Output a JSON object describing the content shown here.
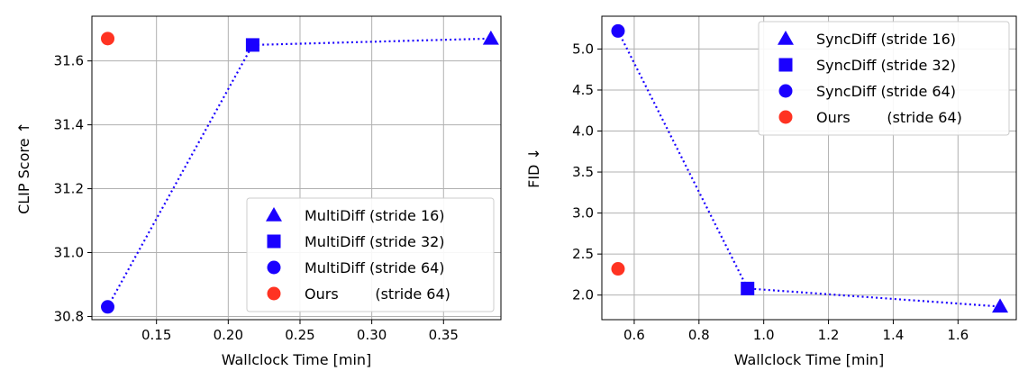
{
  "chart_data": [
    {
      "type": "scatter",
      "xlabel": "Wallclock Time [min]",
      "ylabel": "CLIP Score ↑",
      "xlim": [
        0.105,
        0.39
      ],
      "ylim": [
        30.79,
        31.74
      ],
      "xticks": [
        0.15,
        0.2,
        0.25,
        0.3,
        0.35
      ],
      "xtick_labels": [
        "0.15",
        "0.20",
        "0.25",
        "0.30",
        "0.35"
      ],
      "yticks": [
        30.8,
        31.0,
        31.2,
        31.4,
        31.6
      ],
      "ytick_labels": [
        "30.8",
        "31.0",
        "31.2",
        "31.4",
        "31.6"
      ],
      "grid": true,
      "legend_position": "lower-right",
      "connector_line": {
        "style": "dotted",
        "color": "#1a00ff",
        "connects": "MultiDiff series"
      },
      "series": [
        {
          "name": "MultiDiff (stride 16)",
          "marker": "triangle",
          "color": "#1a00ff",
          "x": [
            0.383
          ],
          "y": [
            31.67
          ]
        },
        {
          "name": "MultiDiff (stride 32)",
          "marker": "square",
          "color": "#1a00ff",
          "x": [
            0.217
          ],
          "y": [
            31.65
          ]
        },
        {
          "name": "MultiDiff (stride 64)",
          "marker": "circle",
          "color": "#1a00ff",
          "x": [
            0.116
          ],
          "y": [
            30.83
          ]
        },
        {
          "name": "Ours        (stride 64)",
          "marker": "circle",
          "color": "#ff3322",
          "x": [
            0.116
          ],
          "y": [
            31.67
          ]
        }
      ]
    },
    {
      "type": "scatter",
      "xlabel": "Wallclock Time [min]",
      "ylabel": "FID ↓",
      "xlim": [
        0.5,
        1.78
      ],
      "ylim": [
        1.7,
        5.4
      ],
      "xticks": [
        0.6,
        0.8,
        1.0,
        1.2,
        1.4,
        1.6
      ],
      "xtick_labels": [
        "0.6",
        "0.8",
        "1.0",
        "1.2",
        "1.4",
        "1.6"
      ],
      "yticks": [
        2.0,
        2.5,
        3.0,
        3.5,
        4.0,
        4.5,
        5.0
      ],
      "ytick_labels": [
        "2.0",
        "2.5",
        "3.0",
        "3.5",
        "4.0",
        "4.5",
        "5.0"
      ],
      "grid": true,
      "legend_position": "upper-right",
      "connector_line": {
        "style": "dotted",
        "color": "#1a00ff",
        "connects": "SyncDiff series"
      },
      "series": [
        {
          "name": "SyncDiff (stride 16)",
          "marker": "triangle",
          "color": "#1a00ff",
          "x": [
            1.73
          ],
          "y": [
            1.86
          ]
        },
        {
          "name": "SyncDiff (stride 32)",
          "marker": "square",
          "color": "#1a00ff",
          "x": [
            0.95
          ],
          "y": [
            2.08
          ]
        },
        {
          "name": "SyncDiff (stride 64)",
          "marker": "circle",
          "color": "#1a00ff",
          "x": [
            0.55
          ],
          "y": [
            5.22
          ]
        },
        {
          "name": "Ours        (stride 64)",
          "marker": "circle",
          "color": "#ff3322",
          "x": [
            0.55
          ],
          "y": [
            2.32
          ]
        }
      ]
    }
  ]
}
